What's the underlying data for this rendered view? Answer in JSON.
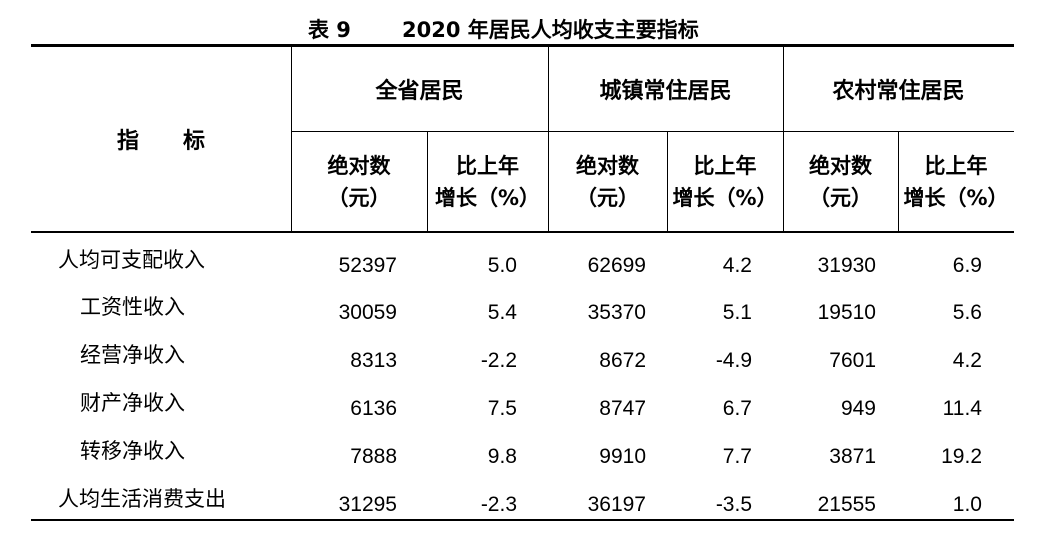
{
  "title": {
    "label": "表 9",
    "text": "2020 年居民人均收支主要指标"
  },
  "header": {
    "indicator": "指　　标",
    "groups": [
      "全省居民",
      "城镇常住居民",
      "农村常住居民"
    ],
    "sub_abs": [
      "绝对数",
      "（元）"
    ],
    "sub_growth": [
      "比上年",
      "增长（%）"
    ]
  },
  "rows": [
    {
      "label": "人均可支配收入",
      "v": [
        "52397",
        "5.0",
        "62699",
        "4.2",
        "31930",
        "6.9"
      ]
    },
    {
      "label": "工资性收入",
      "v": [
        "30059",
        "5.4",
        "35370",
        "5.1",
        "19510",
        "5.6"
      ]
    },
    {
      "label": "经营净收入",
      "v": [
        "8313",
        "-2.2",
        "8672",
        "-4.9",
        "7601",
        "4.2"
      ]
    },
    {
      "label": "财产净收入",
      "v": [
        "6136",
        "7.5",
        "8747",
        "6.7",
        "949",
        "11.4"
      ]
    },
    {
      "label": "转移净收入",
      "v": [
        "7888",
        "9.8",
        "9910",
        "7.7",
        "3871",
        "19.2"
      ]
    },
    {
      "label": "人均生活消费支出",
      "v": [
        "31295",
        "-2.3",
        "36197",
        "-3.5",
        "21555",
        "1.0"
      ]
    }
  ]
}
